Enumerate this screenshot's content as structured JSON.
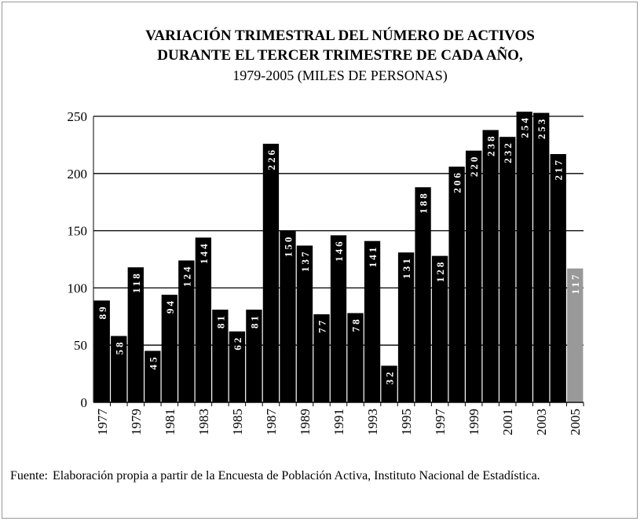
{
  "chart_data": {
    "type": "bar",
    "title": [
      "VARIACIÓN TRIMESTRAL DEL NÚMERO DE ACTIVOS",
      "DURANTE EL TERCER TRIMESTRE DE CADA AÑO,"
    ],
    "subtitle": "1979-2005 (MILES DE PERSONAS)",
    "categories": [
      "1977",
      null,
      "1979",
      null,
      "1981",
      null,
      "1983",
      null,
      "1985",
      null,
      "1987",
      null,
      "1989",
      null,
      "1991",
      null,
      "1993",
      null,
      "1995",
      null,
      "1997",
      null,
      "1999",
      null,
      "2001",
      null,
      "2003",
      null,
      "2005"
    ],
    "values": [
      89,
      58,
      118,
      45,
      94,
      124,
      144,
      81,
      62,
      81,
      226,
      150,
      137,
      77,
      146,
      78,
      141,
      32,
      131,
      188,
      128,
      206,
      220,
      238,
      232,
      254,
      253,
      217,
      117
    ],
    "colors": [
      "#000000",
      "#000000",
      "#000000",
      "#000000",
      "#000000",
      "#000000",
      "#000000",
      "#000000",
      "#000000",
      "#000000",
      "#000000",
      "#000000",
      "#000000",
      "#000000",
      "#000000",
      "#000000",
      "#000000",
      "#000000",
      "#000000",
      "#000000",
      "#000000",
      "#000000",
      "#000000",
      "#000000",
      "#000000",
      "#000000",
      "#000000",
      "#000000",
      "#999999"
    ],
    "ylim": [
      0,
      250
    ],
    "yticks": [
      0,
      50,
      100,
      150,
      200,
      250
    ],
    "grid": true,
    "source_label": "Fuente:",
    "source": "Elaboración propia a partir de la Encuesta de Población Activa, Instituto Nacional de Estadística."
  }
}
